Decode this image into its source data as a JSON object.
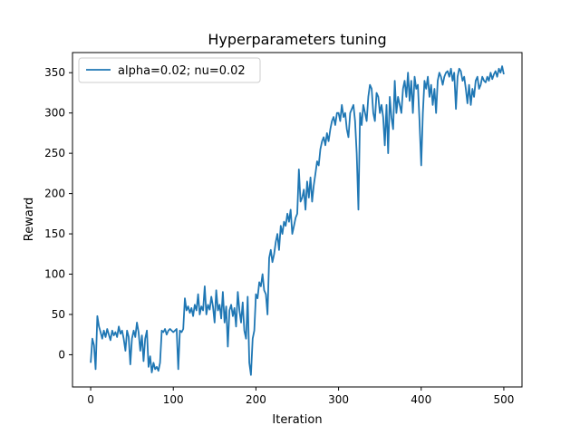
{
  "chart_data": {
    "type": "line",
    "title": "Hyperparameters tuning",
    "xlabel": "Iteration",
    "ylabel": "Reward",
    "xlim": [
      -22,
      522
    ],
    "ylim": [
      -40,
      375
    ],
    "xticks": [
      0,
      100,
      200,
      300,
      400,
      500
    ],
    "yticks": [
      0,
      50,
      100,
      150,
      200,
      250,
      300,
      350
    ],
    "grid": false,
    "legend_position": "top-left",
    "series": [
      {
        "name": "alpha=0.02; nu=0.02",
        "color": "#1f77b4",
        "points": [
          [
            0,
            -10
          ],
          [
            2,
            20
          ],
          [
            4,
            12
          ],
          [
            6,
            -18
          ],
          [
            8,
            48
          ],
          [
            10,
            35
          ],
          [
            12,
            28
          ],
          [
            14,
            20
          ],
          [
            16,
            30
          ],
          [
            18,
            22
          ],
          [
            20,
            32
          ],
          [
            22,
            25
          ],
          [
            24,
            18
          ],
          [
            26,
            30
          ],
          [
            28,
            24
          ],
          [
            30,
            28
          ],
          [
            32,
            22
          ],
          [
            34,
            35
          ],
          [
            36,
            26
          ],
          [
            38,
            30
          ],
          [
            40,
            20
          ],
          [
            42,
            5
          ],
          [
            44,
            30
          ],
          [
            46,
            22
          ],
          [
            48,
            -12
          ],
          [
            50,
            20
          ],
          [
            52,
            30
          ],
          [
            54,
            22
          ],
          [
            56,
            40
          ],
          [
            58,
            28
          ],
          [
            60,
            5
          ],
          [
            62,
            24
          ],
          [
            64,
            -8
          ],
          [
            66,
            20
          ],
          [
            68,
            30
          ],
          [
            70,
            -15
          ],
          [
            72,
            -2
          ],
          [
            74,
            -22
          ],
          [
            76,
            -10
          ],
          [
            78,
            -18
          ],
          [
            80,
            -15
          ],
          [
            82,
            -20
          ],
          [
            84,
            -10
          ],
          [
            86,
            30
          ],
          [
            88,
            28
          ],
          [
            90,
            32
          ],
          [
            92,
            25
          ],
          [
            94,
            30
          ],
          [
            96,
            32
          ],
          [
            98,
            30
          ],
          [
            100,
            28
          ],
          [
            102,
            30
          ],
          [
            104,
            32
          ],
          [
            106,
            -18
          ],
          [
            108,
            30
          ],
          [
            110,
            28
          ],
          [
            112,
            32
          ],
          [
            114,
            70
          ],
          [
            116,
            55
          ],
          [
            118,
            60
          ],
          [
            120,
            52
          ],
          [
            122,
            58
          ],
          [
            124,
            48
          ],
          [
            126,
            62
          ],
          [
            128,
            55
          ],
          [
            130,
            75
          ],
          [
            132,
            50
          ],
          [
            134,
            60
          ],
          [
            136,
            55
          ],
          [
            138,
            85
          ],
          [
            140,
            50
          ],
          [
            142,
            62
          ],
          [
            144,
            56
          ],
          [
            146,
            72
          ],
          [
            148,
            60
          ],
          [
            150,
            40
          ],
          [
            152,
            80
          ],
          [
            154,
            55
          ],
          [
            156,
            62
          ],
          [
            158,
            45
          ],
          [
            160,
            78
          ],
          [
            162,
            40
          ],
          [
            164,
            60
          ],
          [
            166,
            10
          ],
          [
            168,
            55
          ],
          [
            170,
            62
          ],
          [
            172,
            48
          ],
          [
            174,
            58
          ],
          [
            176,
            35
          ],
          [
            178,
            78
          ],
          [
            180,
            55
          ],
          [
            182,
            40
          ],
          [
            184,
            65
          ],
          [
            186,
            30
          ],
          [
            188,
            20
          ],
          [
            190,
            72
          ],
          [
            192,
            -10
          ],
          [
            194,
            -25
          ],
          [
            196,
            20
          ],
          [
            198,
            30
          ],
          [
            200,
            75
          ],
          [
            202,
            70
          ],
          [
            204,
            90
          ],
          [
            206,
            85
          ],
          [
            208,
            100
          ],
          [
            210,
            80
          ],
          [
            212,
            75
          ],
          [
            214,
            50
          ],
          [
            216,
            120
          ],
          [
            218,
            130
          ],
          [
            220,
            115
          ],
          [
            222,
            125
          ],
          [
            224,
            140
          ],
          [
            226,
            150
          ],
          [
            228,
            130
          ],
          [
            230,
            160
          ],
          [
            232,
            150
          ],
          [
            234,
            165
          ],
          [
            236,
            160
          ],
          [
            238,
            175
          ],
          [
            240,
            165
          ],
          [
            242,
            180
          ],
          [
            244,
            150
          ],
          [
            246,
            160
          ],
          [
            248,
            170
          ],
          [
            250,
            175
          ],
          [
            252,
            230
          ],
          [
            254,
            190
          ],
          [
            256,
            195
          ],
          [
            258,
            205
          ],
          [
            260,
            180
          ],
          [
            262,
            215
          ],
          [
            264,
            195
          ],
          [
            266,
            220
          ],
          [
            268,
            190
          ],
          [
            270,
            210
          ],
          [
            272,
            225
          ],
          [
            274,
            240
          ],
          [
            276,
            235
          ],
          [
            278,
            255
          ],
          [
            280,
            265
          ],
          [
            282,
            270
          ],
          [
            284,
            260
          ],
          [
            286,
            275
          ],
          [
            288,
            265
          ],
          [
            290,
            280
          ],
          [
            292,
            290
          ],
          [
            294,
            295
          ],
          [
            296,
            285
          ],
          [
            298,
            300
          ],
          [
            300,
            300
          ],
          [
            302,
            290
          ],
          [
            304,
            310
          ],
          [
            306,
            295
          ],
          [
            308,
            300
          ],
          [
            310,
            280
          ],
          [
            312,
            270
          ],
          [
            314,
            300
          ],
          [
            316,
            305
          ],
          [
            318,
            310
          ],
          [
            320,
            290
          ],
          [
            322,
            250
          ],
          [
            324,
            180
          ],
          [
            326,
            300
          ],
          [
            328,
            285
          ],
          [
            330,
            310
          ],
          [
            332,
            300
          ],
          [
            334,
            290
          ],
          [
            336,
            320
          ],
          [
            338,
            335
          ],
          [
            340,
            330
          ],
          [
            342,
            300
          ],
          [
            344,
            290
          ],
          [
            346,
            325
          ],
          [
            348,
            320
          ],
          [
            350,
            300
          ],
          [
            352,
            310
          ],
          [
            354,
            295
          ],
          [
            356,
            260
          ],
          [
            358,
            310
          ],
          [
            360,
            250
          ],
          [
            362,
            320
          ],
          [
            364,
            295
          ],
          [
            366,
            280
          ],
          [
            368,
            340
          ],
          [
            370,
            300
          ],
          [
            372,
            320
          ],
          [
            374,
            310
          ],
          [
            376,
            300
          ],
          [
            378,
            330
          ],
          [
            380,
            340
          ],
          [
            382,
            320
          ],
          [
            384,
            350
          ],
          [
            386,
            315
          ],
          [
            388,
            340
          ],
          [
            390,
            300
          ],
          [
            392,
            345
          ],
          [
            394,
            330
          ],
          [
            396,
            335
          ],
          [
            398,
            290
          ],
          [
            400,
            235
          ],
          [
            402,
            300
          ],
          [
            404,
            340
          ],
          [
            406,
            330
          ],
          [
            408,
            345
          ],
          [
            410,
            320
          ],
          [
            412,
            335
          ],
          [
            414,
            310
          ],
          [
            416,
            330
          ],
          [
            418,
            300
          ],
          [
            420,
            340
          ],
          [
            422,
            350
          ],
          [
            424,
            345
          ],
          [
            426,
            335
          ],
          [
            428,
            345
          ],
          [
            430,
            350
          ],
          [
            432,
            352
          ],
          [
            434,
            345
          ],
          [
            436,
            355
          ],
          [
            438,
            340
          ],
          [
            440,
            350
          ],
          [
            442,
            305
          ],
          [
            444,
            345
          ],
          [
            446,
            355
          ],
          [
            448,
            352
          ],
          [
            450,
            340
          ],
          [
            452,
            345
          ],
          [
            454,
            330
          ],
          [
            456,
            312
          ],
          [
            458,
            335
          ],
          [
            460,
            310
          ],
          [
            462,
            330
          ],
          [
            464,
            320
          ],
          [
            466,
            340
          ],
          [
            468,
            345
          ],
          [
            470,
            330
          ],
          [
            472,
            335
          ],
          [
            474,
            345
          ],
          [
            476,
            340
          ],
          [
            478,
            338
          ],
          [
            480,
            345
          ],
          [
            482,
            340
          ],
          [
            484,
            350
          ],
          [
            486,
            342
          ],
          [
            488,
            348
          ],
          [
            490,
            352
          ],
          [
            492,
            345
          ],
          [
            494,
            355
          ],
          [
            496,
            350
          ],
          [
            498,
            358
          ],
          [
            500,
            348
          ]
        ]
      }
    ]
  }
}
